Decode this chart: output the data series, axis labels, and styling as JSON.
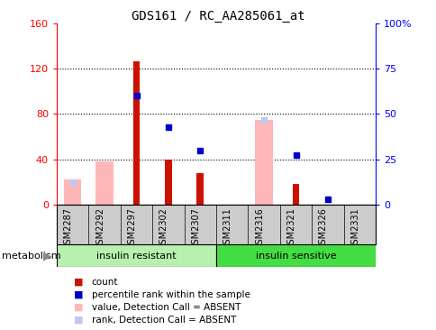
{
  "title": "GDS161 / RC_AA285061_at",
  "samples": [
    "GSM2287",
    "GSM2292",
    "GSM2297",
    "GSM2302",
    "GSM2307",
    "GSM2311",
    "GSM2316",
    "GSM2321",
    "GSM2326",
    "GSM2331"
  ],
  "groups": [
    {
      "label": "insulin resistant",
      "start": 0,
      "end": 5,
      "color": "#b8f0b0"
    },
    {
      "label": "insulin sensitive",
      "start": 5,
      "end": 10,
      "color": "#44dd44"
    }
  ],
  "red_bars": [
    null,
    null,
    126,
    40,
    28,
    null,
    null,
    18,
    null,
    null
  ],
  "pink_bars": [
    22,
    38,
    null,
    null,
    null,
    null,
    75,
    null,
    null,
    null
  ],
  "blue_squares_left": [
    null,
    null,
    96,
    68,
    48,
    null,
    null,
    44,
    5,
    null
  ],
  "lightblue_squares_left": [
    20,
    null,
    null,
    null,
    null,
    null,
    75,
    null,
    null,
    null
  ],
  "ylim_left": [
    0,
    160
  ],
  "yticks_left": [
    0,
    40,
    80,
    120,
    160
  ],
  "ytick_labels_right": [
    "0",
    "25",
    "50",
    "75",
    "100%"
  ],
  "group_label": "metabolism",
  "red_color": "#cc1100",
  "pink_color": "#ffb8b8",
  "blue_color": "#0000cc",
  "lightblue_color": "#c0c8f0",
  "legend_labels": [
    "count",
    "percentile rank within the sample",
    "value, Detection Call = ABSENT",
    "rank, Detection Call = ABSENT"
  ]
}
